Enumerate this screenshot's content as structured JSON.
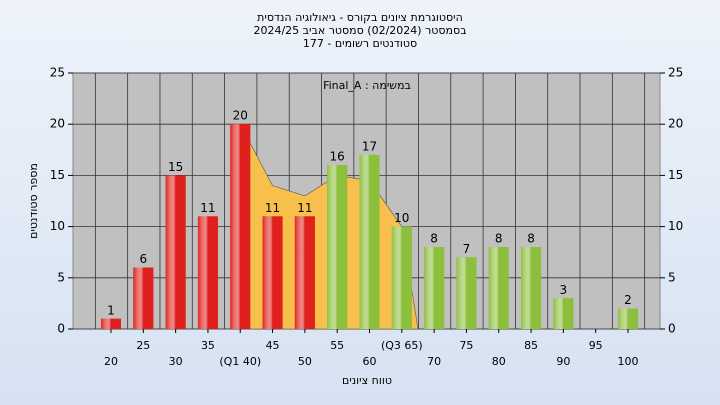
{
  "chart_data": {
    "type": "bar",
    "title": [
      "היסטוגרמת ציונים בקורס - גיאולוגיה הנדסית",
      "בסמסטר  (02/2024)  סמסטר אביב 2024/25",
      "סטודנטים רשומים - 177"
    ],
    "subtitle": "Final_A : במשימה",
    "xlabel": "טווח ציונים",
    "ylabel": "מספר סטודנטים",
    "categories": [
      "20",
      "25",
      "30",
      "35",
      "(Q1 40)",
      "45",
      "50",
      "55",
      "60",
      "(Q3 65)",
      "70",
      "75",
      "80",
      "85",
      "90",
      "95",
      "100"
    ],
    "values": [
      1,
      6,
      15,
      11,
      20,
      11,
      11,
      16,
      17,
      10,
      8,
      7,
      8,
      8,
      3,
      0,
      2
    ],
    "colors": [
      "#e0201c",
      "#e0201c",
      "#e0201c",
      "#e0201c",
      "#e0201c",
      "#e0201c",
      "#e0201c",
      "#8cbf3c",
      "#8cbf3c",
      "#8cbf3c",
      "#8cbf3c",
      "#8cbf3c",
      "#8cbf3c",
      "#8cbf3c",
      "#8cbf3c",
      "#8cbf3c",
      "#8cbf3c"
    ],
    "area": {
      "color": "#f7c04c",
      "x": [
        40,
        45,
        50,
        55,
        60,
        65,
        67.5
      ],
      "values": [
        20,
        14,
        13,
        15,
        14.5,
        10,
        0
      ]
    },
    "ylim": [
      0,
      25
    ],
    "yticks": [
      0,
      5,
      10,
      15,
      20,
      25
    ],
    "y2lim": [
      0,
      25
    ],
    "y2ticks": [
      0,
      5,
      10,
      15,
      20,
      25
    ],
    "grid": true
  }
}
